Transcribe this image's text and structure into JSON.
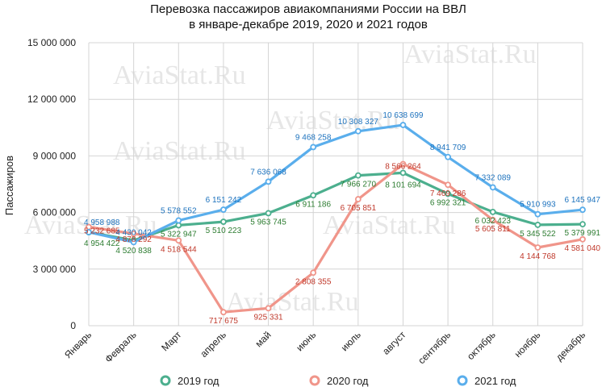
{
  "chart_data": {
    "type": "line",
    "title_lines": [
      "Перевозка пассажиров авиакомпаниями России на ВВЛ",
      "в январе-декабре 2019, 2020 и 2021 годов"
    ],
    "ylabel": "Пассажиров",
    "xlabel": "",
    "ylim": [
      0,
      15000000
    ],
    "yticks": [
      0,
      3000000,
      6000000,
      9000000,
      12000000,
      15000000
    ],
    "ytick_labels": [
      "0",
      "3 000 000",
      "6 000 000",
      "9 000 000",
      "12 000 000",
      "15 000 000"
    ],
    "categories": [
      "Январь",
      "Февраль",
      "Март",
      "апрель",
      "май",
      "июнь",
      "июль",
      "август",
      "сентябрь",
      "октябрь",
      "ноябрь",
      "декабрь"
    ],
    "grid": true,
    "legend_position": "bottom",
    "watermark": "AviaStat.Ru",
    "series": [
      {
        "name": "2019 год",
        "color": "#4caf8e",
        "label_color": "#2e7d32",
        "values": [
          4954422,
          4520838,
          5322947,
          5510223,
          5963745,
          6911186,
          7966270,
          8101694,
          6992321,
          6032423,
          5345522,
          5379991
        ],
        "labels": [
          "4 954 422",
          "4 520 838",
          "5 322 947",
          "5 510 223",
          "5 963 745",
          "6 911 186",
          "7 966 270",
          "8 101 694",
          "6 992 321",
          "6 032 423",
          "5 345 522",
          "5 379 991"
        ]
      },
      {
        "name": "2020 год",
        "color": "#f0958a",
        "label_color": "#c0392b",
        "values": [
          5232685,
          4878292,
          4518544,
          717675,
          925331,
          2808355,
          6705851,
          8566264,
          7469286,
          5605811,
          4144768,
          4581040
        ],
        "labels": [
          "5 232 685",
          "4 878 292",
          "4 518 544",
          "717 675",
          "925 331",
          "2 808 355",
          "6 705 851",
          "8 566 264",
          "7 469 286",
          "5 605 811",
          "4 144 768",
          "4 581 040"
        ]
      },
      {
        "name": "2021 год",
        "color": "#5aaeec",
        "label_color": "#1e73be",
        "values": [
          4958988,
          4430042,
          5578552,
          6151242,
          7636068,
          9468258,
          10308327,
          10638699,
          8941709,
          7332089,
          5910993,
          6145947
        ],
        "labels": [
          "4 958 988",
          "4 430 042",
          "5 578 552",
          "6 151 242",
          "7 636 068",
          "9 468 258",
          "10 308 327",
          "10 638 699",
          "8 941 709",
          "7 332 089",
          "5 910 993",
          "6 145 947"
        ]
      }
    ]
  }
}
